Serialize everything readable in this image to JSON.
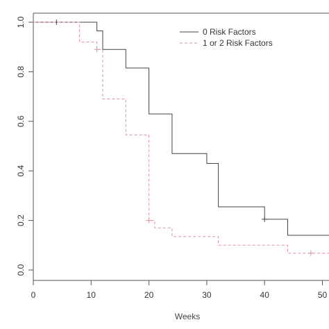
{
  "chart_data": {
    "type": "line",
    "chart_kind": "kaplan-meier step curves",
    "title": "",
    "xlabel": "Weeks",
    "ylabel": "",
    "xlim": [
      0,
      52
    ],
    "ylim": [
      0,
      1.02
    ],
    "xticks": [
      0,
      10,
      20,
      30,
      40,
      50
    ],
    "xtick_labels": [
      "0",
      "10",
      "20",
      "30",
      "40",
      "50"
    ],
    "yticks": [
      0.0,
      0.2,
      0.4,
      0.6,
      0.8,
      1.0
    ],
    "ytick_labels": [
      "0.0",
      "0.2",
      "0.4",
      "0.6",
      "0.8",
      "1.0"
    ],
    "grid": false,
    "legend_position": "top-right",
    "series": [
      {
        "name": "0 Risk Factors",
        "color": "#444444",
        "line_style": "solid",
        "steps": [
          [
            0,
            1.0
          ],
          [
            11,
            0.965
          ],
          [
            12,
            0.89
          ],
          [
            16,
            0.815
          ],
          [
            20,
            0.63
          ],
          [
            24,
            0.47
          ],
          [
            30,
            0.43
          ],
          [
            32,
            0.255
          ],
          [
            40,
            0.205
          ],
          [
            44,
            0.14
          ],
          [
            52,
            0.14
          ]
        ],
        "censor_marks": [
          [
            4,
            1.0
          ],
          [
            40,
            0.205
          ]
        ]
      },
      {
        "name": "1 or 2 Risk Factors",
        "color": "#e0909a",
        "line_style": "dashed",
        "steps": [
          [
            0,
            1.0
          ],
          [
            8,
            0.92
          ],
          [
            11,
            0.89
          ],
          [
            12,
            0.69
          ],
          [
            16,
            0.545
          ],
          [
            20,
            0.2
          ],
          [
            21,
            0.17
          ],
          [
            24,
            0.135
          ],
          [
            32,
            0.1
          ],
          [
            44,
            0.068
          ],
          [
            52,
            0.068
          ]
        ],
        "censor_marks": [
          [
            11,
            0.89
          ],
          [
            20,
            0.2
          ],
          [
            48,
            0.068
          ]
        ]
      }
    ]
  }
}
